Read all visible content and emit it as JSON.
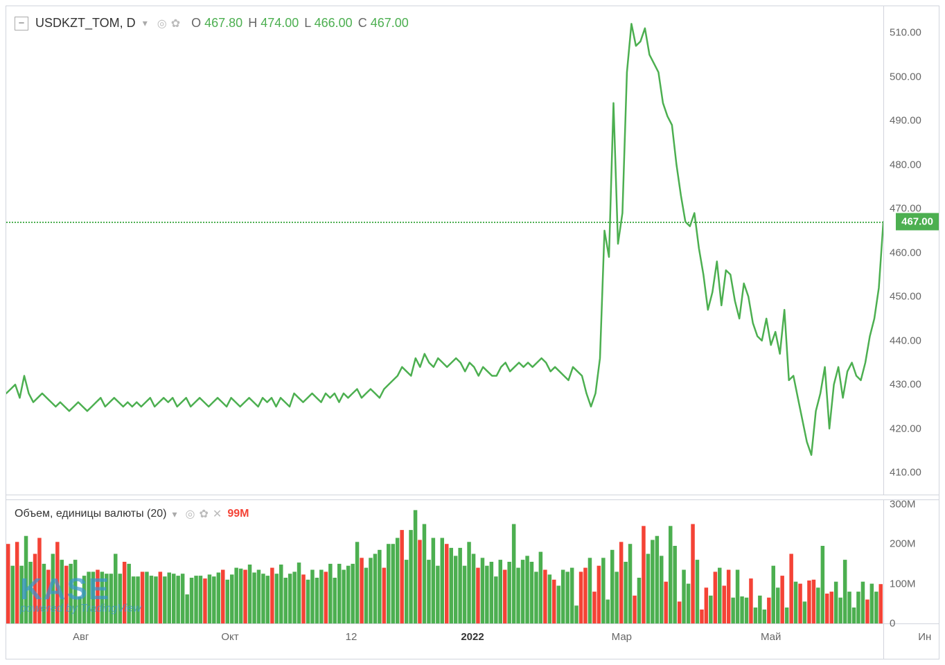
{
  "symbol": "USDKZT_TOM, D",
  "ohlc": {
    "o_label": "O",
    "o": "467.80",
    "h_label": "H",
    "h": "474.00",
    "l_label": "L",
    "l": "466.00",
    "c_label": "C",
    "c": "467.00"
  },
  "price_chart": {
    "type": "line",
    "line_color": "#4caf50",
    "line_width": 2.5,
    "background_color": "#ffffff",
    "ylim": [
      405,
      516
    ],
    "ytick_step": 10,
    "yticks": [
      410,
      420,
      430,
      440,
      450,
      460,
      470,
      480,
      490,
      500,
      510
    ],
    "ytick_labels": [
      "410.00",
      "420.00",
      "430.00",
      "440.00",
      "450.00",
      "460.00",
      "470.00",
      "480.00",
      "490.00",
      "500.00",
      "510.00"
    ],
    "current_price": 467.0,
    "current_price_label": "467.00",
    "price_line_color": "#4caf50",
    "data": [
      428,
      429,
      430,
      427,
      432,
      428,
      426,
      427,
      428,
      427,
      426,
      425,
      426,
      425,
      424,
      425,
      426,
      425,
      424,
      425,
      426,
      427,
      425,
      426,
      427,
      426,
      425,
      426,
      425,
      426,
      425,
      426,
      427,
      425,
      426,
      427,
      426,
      427,
      425,
      426,
      427,
      425,
      426,
      427,
      426,
      425,
      426,
      427,
      426,
      425,
      427,
      426,
      425,
      426,
      427,
      426,
      425,
      427,
      426,
      427,
      425,
      427,
      426,
      425,
      428,
      427,
      426,
      427,
      428,
      427,
      426,
      428,
      427,
      428,
      426,
      428,
      427,
      428,
      429,
      427,
      428,
      429,
      428,
      427,
      429,
      430,
      431,
      432,
      434,
      433,
      432,
      436,
      434,
      437,
      435,
      434,
      436,
      435,
      434,
      435,
      436,
      435,
      433,
      435,
      434,
      432,
      434,
      433,
      432,
      432,
      434,
      435,
      433,
      434,
      435,
      434,
      435,
      434,
      435,
      436,
      435,
      433,
      434,
      433,
      432,
      431,
      434,
      433,
      432,
      428,
      425,
      428,
      436,
      465,
      459,
      494,
      462,
      469,
      501,
      512,
      507,
      508,
      511,
      505,
      503,
      501,
      494,
      491,
      489,
      480,
      473,
      467,
      466,
      469,
      461,
      455,
      447,
      451,
      458,
      448,
      456,
      455,
      449,
      445,
      453,
      450,
      444,
      441,
      440,
      445,
      439,
      442,
      437,
      447,
      431,
      432,
      427,
      422,
      417,
      414,
      424,
      428,
      434,
      420,
      430,
      434,
      427,
      433,
      435,
      432,
      431,
      435,
      441,
      445,
      452,
      467
    ]
  },
  "volume_chart": {
    "type": "bar",
    "title": "Объем, единицы валюты (20)",
    "current_value_label": "99M",
    "up_color": "#4caf50",
    "down_color": "#f44336",
    "ylim": [
      0,
      310
    ],
    "yticks": [
      0,
      100,
      200,
      300
    ],
    "ytick_labels": [
      "0",
      "100M",
      "200M",
      "300M"
    ],
    "data": [
      {
        "v": 200,
        "c": "r"
      },
      {
        "v": 145,
        "c": "g"
      },
      {
        "v": 205,
        "c": "r"
      },
      {
        "v": 145,
        "c": "g"
      },
      {
        "v": 220,
        "c": "g"
      },
      {
        "v": 155,
        "c": "g"
      },
      {
        "v": 175,
        "c": "r"
      },
      {
        "v": 215,
        "c": "r"
      },
      {
        "v": 150,
        "c": "g"
      },
      {
        "v": 135,
        "c": "r"
      },
      {
        "v": 175,
        "c": "g"
      },
      {
        "v": 205,
        "c": "r"
      },
      {
        "v": 160,
        "c": "g"
      },
      {
        "v": 145,
        "c": "r"
      },
      {
        "v": 150,
        "c": "g"
      },
      {
        "v": 160,
        "c": "g"
      },
      {
        "v": 67,
        "c": "g"
      },
      {
        "v": 120,
        "c": "g"
      },
      {
        "v": 130,
        "c": "g"
      },
      {
        "v": 130,
        "c": "g"
      },
      {
        "v": 135,
        "c": "r"
      },
      {
        "v": 130,
        "c": "g"
      },
      {
        "v": 125,
        "c": "g"
      },
      {
        "v": 125,
        "c": "g"
      },
      {
        "v": 175,
        "c": "g"
      },
      {
        "v": 125,
        "c": "g"
      },
      {
        "v": 155,
        "c": "r"
      },
      {
        "v": 150,
        "c": "g"
      },
      {
        "v": 118,
        "c": "g"
      },
      {
        "v": 118,
        "c": "g"
      },
      {
        "v": 130,
        "c": "r"
      },
      {
        "v": 130,
        "c": "g"
      },
      {
        "v": 120,
        "c": "g"
      },
      {
        "v": 118,
        "c": "g"
      },
      {
        "v": 130,
        "c": "r"
      },
      {
        "v": 118,
        "c": "g"
      },
      {
        "v": 128,
        "c": "g"
      },
      {
        "v": 125,
        "c": "g"
      },
      {
        "v": 120,
        "c": "g"
      },
      {
        "v": 125,
        "c": "g"
      },
      {
        "v": 73,
        "c": "g"
      },
      {
        "v": 115,
        "c": "g"
      },
      {
        "v": 120,
        "c": "g"
      },
      {
        "v": 120,
        "c": "g"
      },
      {
        "v": 113,
        "c": "r"
      },
      {
        "v": 123,
        "c": "g"
      },
      {
        "v": 118,
        "c": "g"
      },
      {
        "v": 128,
        "c": "g"
      },
      {
        "v": 135,
        "c": "r"
      },
      {
        "v": 110,
        "c": "g"
      },
      {
        "v": 123,
        "c": "g"
      },
      {
        "v": 140,
        "c": "g"
      },
      {
        "v": 138,
        "c": "g"
      },
      {
        "v": 135,
        "c": "r"
      },
      {
        "v": 148,
        "c": "g"
      },
      {
        "v": 128,
        "c": "g"
      },
      {
        "v": 135,
        "c": "g"
      },
      {
        "v": 125,
        "c": "g"
      },
      {
        "v": 120,
        "c": "g"
      },
      {
        "v": 140,
        "c": "r"
      },
      {
        "v": 125,
        "c": "g"
      },
      {
        "v": 148,
        "c": "g"
      },
      {
        "v": 115,
        "c": "g"
      },
      {
        "v": 125,
        "c": "g"
      },
      {
        "v": 130,
        "c": "g"
      },
      {
        "v": 153,
        "c": "g"
      },
      {
        "v": 123,
        "c": "r"
      },
      {
        "v": 110,
        "c": "g"
      },
      {
        "v": 135,
        "c": "g"
      },
      {
        "v": 115,
        "c": "g"
      },
      {
        "v": 135,
        "c": "g"
      },
      {
        "v": 130,
        "c": "r"
      },
      {
        "v": 150,
        "c": "g"
      },
      {
        "v": 115,
        "c": "g"
      },
      {
        "v": 150,
        "c": "g"
      },
      {
        "v": 135,
        "c": "g"
      },
      {
        "v": 145,
        "c": "g"
      },
      {
        "v": 150,
        "c": "g"
      },
      {
        "v": 205,
        "c": "g"
      },
      {
        "v": 165,
        "c": "r"
      },
      {
        "v": 140,
        "c": "g"
      },
      {
        "v": 165,
        "c": "g"
      },
      {
        "v": 175,
        "c": "g"
      },
      {
        "v": 185,
        "c": "g"
      },
      {
        "v": 140,
        "c": "r"
      },
      {
        "v": 200,
        "c": "g"
      },
      {
        "v": 200,
        "c": "g"
      },
      {
        "v": 215,
        "c": "g"
      },
      {
        "v": 235,
        "c": "r"
      },
      {
        "v": 160,
        "c": "g"
      },
      {
        "v": 235,
        "c": "g"
      },
      {
        "v": 285,
        "c": "g"
      },
      {
        "v": 210,
        "c": "r"
      },
      {
        "v": 250,
        "c": "g"
      },
      {
        "v": 160,
        "c": "g"
      },
      {
        "v": 215,
        "c": "g"
      },
      {
        "v": 145,
        "c": "g"
      },
      {
        "v": 215,
        "c": "g"
      },
      {
        "v": 200,
        "c": "r"
      },
      {
        "v": 190,
        "c": "g"
      },
      {
        "v": 170,
        "c": "g"
      },
      {
        "v": 190,
        "c": "g"
      },
      {
        "v": 145,
        "c": "g"
      },
      {
        "v": 205,
        "c": "g"
      },
      {
        "v": 175,
        "c": "g"
      },
      {
        "v": 140,
        "c": "r"
      },
      {
        "v": 165,
        "c": "g"
      },
      {
        "v": 145,
        "c": "g"
      },
      {
        "v": 155,
        "c": "g"
      },
      {
        "v": 118,
        "c": "g"
      },
      {
        "v": 160,
        "c": "g"
      },
      {
        "v": 135,
        "c": "r"
      },
      {
        "v": 155,
        "c": "g"
      },
      {
        "v": 250,
        "c": "g"
      },
      {
        "v": 140,
        "c": "g"
      },
      {
        "v": 160,
        "c": "g"
      },
      {
        "v": 170,
        "c": "g"
      },
      {
        "v": 155,
        "c": "g"
      },
      {
        "v": 130,
        "c": "g"
      },
      {
        "v": 180,
        "c": "g"
      },
      {
        "v": 135,
        "c": "r"
      },
      {
        "v": 123,
        "c": "g"
      },
      {
        "v": 110,
        "c": "r"
      },
      {
        "v": 95,
        "c": "g"
      },
      {
        "v": 135,
        "c": "g"
      },
      {
        "v": 130,
        "c": "g"
      },
      {
        "v": 140,
        "c": "g"
      },
      {
        "v": 45,
        "c": "g"
      },
      {
        "v": 130,
        "c": "r"
      },
      {
        "v": 140,
        "c": "r"
      },
      {
        "v": 165,
        "c": "g"
      },
      {
        "v": 80,
        "c": "r"
      },
      {
        "v": 145,
        "c": "r"
      },
      {
        "v": 165,
        "c": "g"
      },
      {
        "v": 60,
        "c": "g"
      },
      {
        "v": 185,
        "c": "g"
      },
      {
        "v": 130,
        "c": "g"
      },
      {
        "v": 205,
        "c": "r"
      },
      {
        "v": 155,
        "c": "g"
      },
      {
        "v": 200,
        "c": "g"
      },
      {
        "v": 70,
        "c": "r"
      },
      {
        "v": 115,
        "c": "g"
      },
      {
        "v": 245,
        "c": "r"
      },
      {
        "v": 175,
        "c": "g"
      },
      {
        "v": 210,
        "c": "g"
      },
      {
        "v": 220,
        "c": "g"
      },
      {
        "v": 170,
        "c": "g"
      },
      {
        "v": 105,
        "c": "r"
      },
      {
        "v": 245,
        "c": "g"
      },
      {
        "v": 195,
        "c": "g"
      },
      {
        "v": 55,
        "c": "r"
      },
      {
        "v": 135,
        "c": "g"
      },
      {
        "v": 100,
        "c": "g"
      },
      {
        "v": 250,
        "c": "r"
      },
      {
        "v": 160,
        "c": "g"
      },
      {
        "v": 35,
        "c": "r"
      },
      {
        "v": 90,
        "c": "r"
      },
      {
        "v": 70,
        "c": "g"
      },
      {
        "v": 130,
        "c": "r"
      },
      {
        "v": 140,
        "c": "g"
      },
      {
        "v": 95,
        "c": "r"
      },
      {
        "v": 135,
        "c": "r"
      },
      {
        "v": 65,
        "c": "g"
      },
      {
        "v": 135,
        "c": "g"
      },
      {
        "v": 68,
        "c": "g"
      },
      {
        "v": 65,
        "c": "g"
      },
      {
        "v": 113,
        "c": "r"
      },
      {
        "v": 40,
        "c": "g"
      },
      {
        "v": 70,
        "c": "g"
      },
      {
        "v": 35,
        "c": "g"
      },
      {
        "v": 65,
        "c": "r"
      },
      {
        "v": 145,
        "c": "g"
      },
      {
        "v": 90,
        "c": "g"
      },
      {
        "v": 120,
        "c": "r"
      },
      {
        "v": 40,
        "c": "g"
      },
      {
        "v": 175,
        "c": "r"
      },
      {
        "v": 105,
        "c": "g"
      },
      {
        "v": 100,
        "c": "r"
      },
      {
        "v": 55,
        "c": "g"
      },
      {
        "v": 108,
        "c": "r"
      },
      {
        "v": 110,
        "c": "r"
      },
      {
        "v": 90,
        "c": "g"
      },
      {
        "v": 195,
        "c": "g"
      },
      {
        "v": 75,
        "c": "r"
      },
      {
        "v": 80,
        "c": "r"
      },
      {
        "v": 105,
        "c": "g"
      },
      {
        "v": 65,
        "c": "g"
      },
      {
        "v": 160,
        "c": "g"
      },
      {
        "v": 80,
        "c": "g"
      },
      {
        "v": 40,
        "c": "g"
      },
      {
        "v": 80,
        "c": "g"
      },
      {
        "v": 105,
        "c": "g"
      },
      {
        "v": 60,
        "c": "r"
      },
      {
        "v": 100,
        "c": "g"
      },
      {
        "v": 80,
        "c": "g"
      },
      {
        "v": 99,
        "c": "r"
      }
    ]
  },
  "time_axis": {
    "labels": [
      {
        "pos": 0.08,
        "text": "Авг",
        "bold": false
      },
      {
        "pos": 0.24,
        "text": "Окт",
        "bold": false
      },
      {
        "pos": 0.37,
        "text": "12",
        "bold": false
      },
      {
        "pos": 0.5,
        "text": "2022",
        "bold": true
      },
      {
        "pos": 0.66,
        "text": "Мар",
        "bold": false
      },
      {
        "pos": 0.82,
        "text": "Май",
        "bold": false
      },
      {
        "pos": 0.985,
        "text": "Ин",
        "bold": false
      }
    ]
  },
  "watermark": {
    "brand": "KASE",
    "subtitle": "powered by TradingView"
  },
  "colors": {
    "border": "#d1d4dc",
    "text": "#666666",
    "green": "#4caf50",
    "red": "#f44336",
    "blue": "#3994d1"
  }
}
